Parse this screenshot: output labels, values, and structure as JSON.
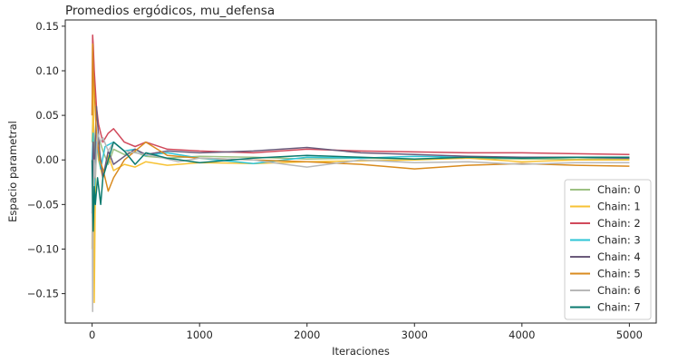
{
  "chart_data": {
    "type": "line",
    "title": "Promedios ergódicos, mu_defensa",
    "xlabel": "Iteraciones",
    "ylabel": "Espacio parametral",
    "xlim": [
      -250,
      5250
    ],
    "ylim": [
      -0.183,
      0.157
    ],
    "xticks": [
      0,
      1000,
      2000,
      3000,
      4000,
      5000
    ],
    "yticks": [
      -0.15,
      -0.1,
      -0.05,
      0.0,
      0.05,
      0.1,
      0.15
    ],
    "xtick_labels": [
      "0",
      "1000",
      "2000",
      "3000",
      "4000",
      "5000"
    ],
    "ytick_labels": [
      "−0.15",
      "−0.10",
      "−0.05",
      "0.00",
      "0.05",
      "0.10",
      "0.15"
    ],
    "grid": false,
    "legend_position": "lower-right",
    "series": [
      {
        "name": "Chain: 0",
        "color": "#9dc183",
        "x": [
          0,
          10,
          25,
          50,
          100,
          150,
          200,
          300,
          400,
          500,
          700,
          1000,
          1500,
          2000,
          2500,
          3000,
          3500,
          4000,
          4500,
          5000
        ],
        "y": [
          0.02,
          0.06,
          -0.01,
          0.03,
          0.01,
          -0.005,
          0.012,
          0.006,
          0.009,
          0.004,
          0.002,
          0.004,
          0.003,
          0.001,
          0.002,
          0.001,
          0.002,
          0.001,
          0.001,
          0.001
        ]
      },
      {
        "name": "Chain: 1",
        "color": "#f7c234",
        "x": [
          0,
          10,
          20,
          35,
          60,
          100,
          150,
          200,
          300,
          400,
          500,
          700,
          1000,
          1500,
          2000,
          2500,
          3000,
          3500,
          4000,
          4500,
          5000
        ],
        "y": [
          -0.1,
          0.13,
          -0.16,
          0.03,
          0.0,
          -0.02,
          0.005,
          -0.012,
          -0.005,
          -0.008,
          -0.002,
          -0.006,
          -0.003,
          -0.004,
          -0.002,
          -0.001,
          0.0,
          0.002,
          -0.002,
          0.0,
          0.0
        ]
      },
      {
        "name": "Chain: 2",
        "color": "#d1495b",
        "x": [
          0,
          5,
          10,
          20,
          40,
          60,
          100,
          150,
          200,
          300,
          400,
          500,
          700,
          1000,
          1500,
          2000,
          2500,
          3000,
          3500,
          4000,
          4500,
          5000
        ],
        "y": [
          0.05,
          0.14,
          0.13,
          0.1,
          0.06,
          0.04,
          0.02,
          0.03,
          0.035,
          0.02,
          0.015,
          0.02,
          0.012,
          0.01,
          0.008,
          0.012,
          0.01,
          0.009,
          0.008,
          0.008,
          0.007,
          0.006
        ]
      },
      {
        "name": "Chain: 3",
        "color": "#2ec4d6",
        "x": [
          0,
          10,
          20,
          40,
          80,
          120,
          200,
          300,
          400,
          500,
          700,
          1000,
          1500,
          2000,
          2500,
          3000,
          3500,
          4000,
          4500,
          5000
        ],
        "y": [
          0.0,
          0.03,
          -0.04,
          0.02,
          -0.01,
          0.015,
          0.02,
          0.01,
          0.012,
          0.005,
          0.008,
          0.002,
          -0.004,
          0.003,
          0.002,
          0.004,
          0.003,
          0.002,
          0.003,
          0.002
        ]
      },
      {
        "name": "Chain: 4",
        "color": "#6b5b7b",
        "x": [
          0,
          10,
          20,
          40,
          70,
          100,
          150,
          200,
          300,
          400,
          500,
          700,
          1000,
          1500,
          2000,
          2500,
          3000,
          3500,
          4000,
          4500,
          5000
        ],
        "y": [
          -0.06,
          0.02,
          -0.02,
          0.06,
          0.01,
          -0.02,
          0.01,
          -0.005,
          0.004,
          0.012,
          0.006,
          0.01,
          0.008,
          0.01,
          0.014,
          0.008,
          0.006,
          0.004,
          0.003,
          0.003,
          0.002
        ]
      },
      {
        "name": "Chain: 5",
        "color": "#d98b1f",
        "x": [
          0,
          5,
          10,
          20,
          40,
          70,
          100,
          150,
          200,
          250,
          300,
          400,
          500,
          700,
          1000,
          1500,
          2000,
          2500,
          3000,
          3500,
          4000,
          4500,
          5000
        ],
        "y": [
          0.05,
          0.13,
          0.1,
          0.08,
          0.03,
          0.0,
          -0.01,
          -0.035,
          -0.02,
          -0.01,
          0.0,
          0.01,
          0.02,
          0.005,
          0.002,
          0.0,
          -0.002,
          -0.005,
          -0.01,
          -0.006,
          -0.004,
          -0.006,
          -0.007
        ]
      },
      {
        "name": "Chain: 6",
        "color": "#b8b8b8",
        "x": [
          0,
          5,
          10,
          20,
          30,
          50,
          80,
          100,
          150,
          200,
          300,
          400,
          600,
          800,
          1000,
          1500,
          1800,
          2000,
          2500,
          3000,
          3500,
          4000,
          4500,
          5000
        ],
        "y": [
          0.0,
          -0.17,
          -0.05,
          0.0,
          -0.02,
          0.03,
          0.02,
          0.025,
          0.01,
          0.02,
          0.01,
          0.008,
          0.004,
          -0.002,
          0.002,
          0.0,
          -0.005,
          -0.008,
          0.0,
          -0.003,
          -0.002,
          -0.005,
          -0.003,
          -0.003
        ]
      },
      {
        "name": "Chain: 7",
        "color": "#0b7a6f",
        "x": [
          0,
          10,
          20,
          30,
          50,
          80,
          100,
          150,
          200,
          300,
          400,
          500,
          700,
          1000,
          1500,
          2000,
          2500,
          3000,
          3500,
          4000,
          4500,
          5000
        ],
        "y": [
          0.0,
          -0.08,
          -0.03,
          -0.05,
          -0.02,
          -0.05,
          -0.02,
          0.0,
          0.02,
          0.01,
          -0.005,
          0.008,
          0.002,
          -0.003,
          0.002,
          0.005,
          0.003,
          0.001,
          0.003,
          0.002,
          0.003,
          0.003
        ]
      }
    ]
  }
}
